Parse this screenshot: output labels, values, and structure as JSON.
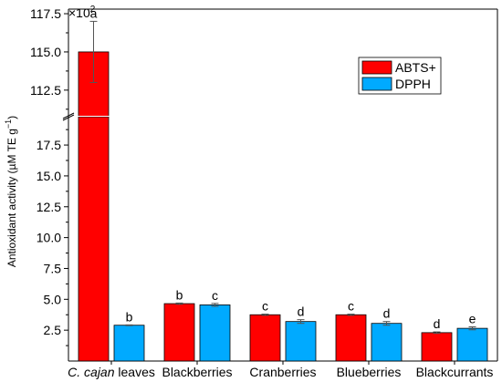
{
  "chart_data": {
    "type": "bar",
    "ylabel": "Antioxidant activity (µM TE g",
    "ylabel_sup": "−1",
    "ylabel_close": ")",
    "multiplier": "×10",
    "multiplier_exp": "2",
    "axis_break": true,
    "lower_ylim": [
      0,
      19.5
    ],
    "upper_ylim": [
      111,
      117.8
    ],
    "lower_ticks": [
      "2.5",
      "5.0",
      "7.5",
      "10.0",
      "12.5",
      "15.0",
      "17.5"
    ],
    "upper_ticks": [
      "112.5",
      "115.0",
      "117.5"
    ],
    "categories": [
      {
        "italic": "C. cajan",
        "rest": " leaves"
      },
      {
        "italic": "",
        "rest": "Blackberries"
      },
      {
        "italic": "",
        "rest": "Cranberries"
      },
      {
        "italic": "",
        "rest": "Blueberries"
      },
      {
        "italic": "",
        "rest": "Blackcurrants"
      }
    ],
    "series": [
      {
        "name": "ABTS+",
        "color": "#ff0000",
        "values": [
          115.0,
          4.65,
          3.75,
          3.75,
          2.3
        ],
        "errors": [
          2.0,
          0.05,
          0.05,
          0.05,
          0.06
        ],
        "letters": [
          "a",
          "b",
          "c",
          "c",
          "d"
        ]
      },
      {
        "name": "DPPH",
        "color": "#00aaff",
        "values": [
          2.9,
          4.55,
          3.2,
          3.05,
          2.65
        ],
        "errors": [
          0.03,
          0.12,
          0.15,
          0.15,
          0.12
        ],
        "letters": [
          "b",
          "c",
          "d",
          "d",
          "e"
        ]
      }
    ],
    "legend_position": "top-right",
    "grid": false
  }
}
